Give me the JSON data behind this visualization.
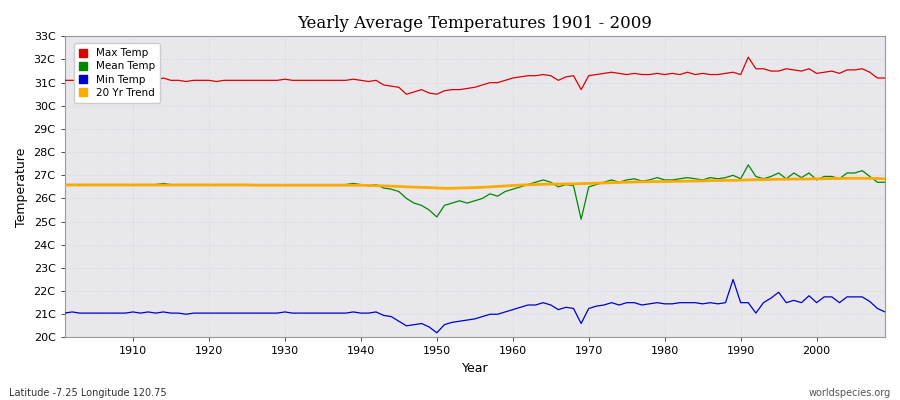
{
  "title": "Yearly Average Temperatures 1901 - 2009",
  "xlabel": "Year",
  "ylabel": "Temperature",
  "year_start": 1901,
  "year_end": 2009,
  "xlim": [
    1901,
    2009
  ],
  "ylim": [
    20,
    33
  ],
  "yticks": [
    20,
    21,
    22,
    23,
    24,
    25,
    26,
    27,
    28,
    29,
    30,
    31,
    32,
    33
  ],
  "ytick_labels": [
    "20C",
    "21C",
    "22C",
    "23C",
    "24C",
    "25C",
    "26C",
    "27C",
    "28C",
    "29C",
    "30C",
    "31C",
    "32C",
    "33C"
  ],
  "xticks": [
    1910,
    1920,
    1930,
    1940,
    1950,
    1960,
    1970,
    1980,
    1990,
    2000
  ],
  "plot_bg_color": "#e8e8ec",
  "fig_bg_color": "#ffffff",
  "grid_color": "#d0d0d8",
  "legend_labels": [
    "Max Temp",
    "Mean Temp",
    "Min Temp",
    "20 Yr Trend"
  ],
  "legend_colors": [
    "#dd0000",
    "#008800",
    "#0000cc",
    "#ffaa00"
  ],
  "line_colors": {
    "max": "#dd0000",
    "mean": "#008800",
    "min": "#0000cc",
    "trend": "#ffaa00"
  },
  "footer_left": "Latitude -7.25 Longitude 120.75",
  "footer_right": "worldspecies.org",
  "max_temp": [
    31.1,
    31.1,
    31.1,
    31.1,
    31.1,
    31.1,
    31.15,
    31.1,
    31.1,
    31.15,
    31.1,
    31.15,
    31.1,
    31.2,
    31.1,
    31.1,
    31.05,
    31.1,
    31.1,
    31.1,
    31.05,
    31.1,
    31.1,
    31.1,
    31.1,
    31.1,
    31.1,
    31.1,
    31.1,
    31.15,
    31.1,
    31.1,
    31.1,
    31.1,
    31.1,
    31.1,
    31.1,
    31.1,
    31.15,
    31.1,
    31.05,
    31.1,
    30.9,
    30.85,
    30.8,
    30.5,
    30.6,
    30.7,
    30.55,
    30.5,
    30.65,
    30.7,
    30.7,
    30.75,
    30.8,
    30.9,
    31.0,
    31.0,
    31.1,
    31.2,
    31.25,
    31.3,
    31.3,
    31.35,
    31.3,
    31.1,
    31.25,
    31.3,
    30.7,
    31.3,
    31.35,
    31.4,
    31.45,
    31.4,
    31.35,
    31.4,
    31.35,
    31.35,
    31.4,
    31.35,
    31.4,
    31.35,
    31.45,
    31.35,
    31.4,
    31.35,
    31.35,
    31.4,
    31.45,
    31.35,
    32.1,
    31.6,
    31.6,
    31.5,
    31.5,
    31.6,
    31.55,
    31.5,
    31.6,
    31.4,
    31.45,
    31.5,
    31.4,
    31.55,
    31.55,
    31.6,
    31.45,
    31.2,
    31.2
  ],
  "mean_temp": [
    26.6,
    26.6,
    26.6,
    26.6,
    26.6,
    26.6,
    26.6,
    26.6,
    26.6,
    26.6,
    26.6,
    26.6,
    26.6,
    26.65,
    26.6,
    26.6,
    26.6,
    26.6,
    26.6,
    26.6,
    26.6,
    26.6,
    26.6,
    26.6,
    26.6,
    26.6,
    26.6,
    26.6,
    26.6,
    26.6,
    26.6,
    26.6,
    26.6,
    26.6,
    26.6,
    26.6,
    26.6,
    26.6,
    26.65,
    26.6,
    26.55,
    26.6,
    26.45,
    26.4,
    26.3,
    26.0,
    25.8,
    25.7,
    25.5,
    25.2,
    25.7,
    25.8,
    25.9,
    25.8,
    25.9,
    26.0,
    26.2,
    26.1,
    26.3,
    26.4,
    26.5,
    26.6,
    26.7,
    26.8,
    26.7,
    26.5,
    26.6,
    26.55,
    25.1,
    26.5,
    26.6,
    26.7,
    26.8,
    26.7,
    26.8,
    26.85,
    26.75,
    26.8,
    26.9,
    26.8,
    26.8,
    26.85,
    26.9,
    26.85,
    26.8,
    26.9,
    26.85,
    26.9,
    27.0,
    26.85,
    27.45,
    26.95,
    26.85,
    26.95,
    27.1,
    26.85,
    27.1,
    26.9,
    27.1,
    26.8,
    26.95,
    26.95,
    26.85,
    27.1,
    27.1,
    27.2,
    26.95,
    26.7,
    26.7
  ],
  "min_temp": [
    21.05,
    21.1,
    21.05,
    21.05,
    21.05,
    21.05,
    21.05,
    21.05,
    21.05,
    21.1,
    21.05,
    21.1,
    21.05,
    21.1,
    21.05,
    21.05,
    21.0,
    21.05,
    21.05,
    21.05,
    21.05,
    21.05,
    21.05,
    21.05,
    21.05,
    21.05,
    21.05,
    21.05,
    21.05,
    21.1,
    21.05,
    21.05,
    21.05,
    21.05,
    21.05,
    21.05,
    21.05,
    21.05,
    21.1,
    21.05,
    21.05,
    21.1,
    20.95,
    20.9,
    20.7,
    20.5,
    20.55,
    20.6,
    20.45,
    20.2,
    20.55,
    20.65,
    20.7,
    20.75,
    20.8,
    20.9,
    21.0,
    21.0,
    21.1,
    21.2,
    21.3,
    21.4,
    21.4,
    21.5,
    21.4,
    21.2,
    21.3,
    21.25,
    20.6,
    21.25,
    21.35,
    21.4,
    21.5,
    21.4,
    21.5,
    21.5,
    21.4,
    21.45,
    21.5,
    21.45,
    21.45,
    21.5,
    21.5,
    21.5,
    21.45,
    21.5,
    21.45,
    21.5,
    22.5,
    21.5,
    21.5,
    21.05,
    21.5,
    21.7,
    21.95,
    21.5,
    21.6,
    21.5,
    21.8,
    21.5,
    21.75,
    21.75,
    21.5,
    21.75,
    21.75,
    21.75,
    21.55,
    21.25,
    21.1
  ],
  "trend": [
    26.58,
    26.58,
    26.58,
    26.58,
    26.58,
    26.58,
    26.58,
    26.58,
    26.58,
    26.58,
    26.58,
    26.58,
    26.58,
    26.58,
    26.58,
    26.58,
    26.58,
    26.58,
    26.58,
    26.58,
    26.58,
    26.58,
    26.58,
    26.58,
    26.58,
    26.57,
    26.57,
    26.57,
    26.57,
    26.57,
    26.57,
    26.57,
    26.57,
    26.57,
    26.57,
    26.57,
    26.57,
    26.57,
    26.57,
    26.57,
    26.56,
    26.55,
    26.54,
    26.53,
    26.52,
    26.5,
    26.49,
    26.48,
    26.47,
    26.45,
    26.44,
    26.44,
    26.45,
    26.46,
    26.47,
    26.48,
    26.5,
    26.52,
    26.54,
    26.56,
    26.58,
    26.59,
    26.6,
    26.61,
    26.62,
    26.62,
    26.63,
    26.63,
    26.64,
    26.65,
    26.66,
    26.67,
    26.68,
    26.69,
    26.7,
    26.71,
    26.72,
    26.72,
    26.73,
    26.73,
    26.74,
    26.74,
    26.75,
    26.75,
    26.76,
    26.77,
    26.77,
    26.78,
    26.78,
    26.79,
    26.8,
    26.81,
    26.81,
    26.82,
    26.83,
    26.83,
    26.84,
    26.84,
    26.84,
    26.85,
    26.85,
    26.86,
    26.86,
    26.87,
    26.87,
    26.87,
    26.87,
    26.86,
    26.85
  ]
}
